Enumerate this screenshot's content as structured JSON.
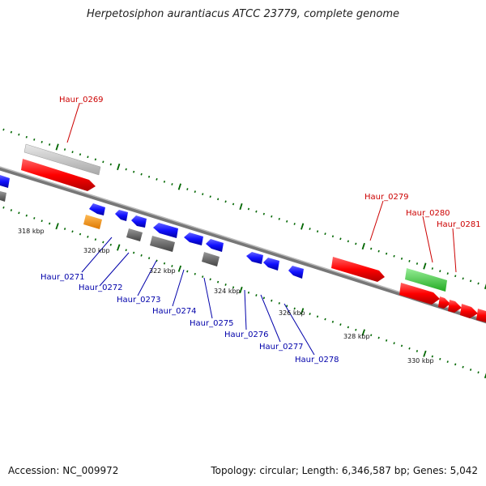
{
  "title": "Herpetosiphon aurantiacus ATCC 23779, complete genome",
  "footer": {
    "accession": "Accession: NC_009972",
    "summary": "Topology: circular; Length: 6,346,587 bp; Genes: 5,042"
  },
  "scale": [
    {
      "label": "318 kbp"
    },
    {
      "label": "320 kbp"
    },
    {
      "label": "322 kbp"
    },
    {
      "label": "324 kbp"
    },
    {
      "label": "326 kbp"
    },
    {
      "label": "328 kbp"
    },
    {
      "label": "330 kbp"
    }
  ],
  "forward_labels": [
    "Haur_0269",
    "Haur_0279",
    "Haur_0280",
    "Haur_0281"
  ],
  "reverse_labels": [
    "Haur_0271",
    "Haur_0272",
    "Haur_0273",
    "Haur_0274",
    "Haur_0275",
    "Haur_0276",
    "Haur_0277",
    "Haur_0278"
  ],
  "colors": {
    "forward_gene": "#ff0000",
    "reverse_gene": "#0000ff",
    "rna_gene": "#ff8800",
    "pseudo_gene": "#666666",
    "gray_feature": "#c0c0c0",
    "green_feature": "#33cc33",
    "tick": "#006600",
    "forward_label": "#cc0000",
    "reverse_label": "#0000aa"
  }
}
